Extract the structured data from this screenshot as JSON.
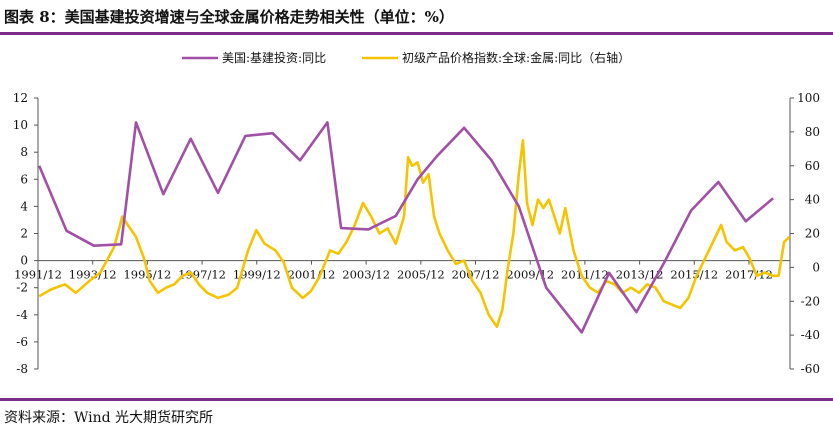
{
  "title": "图表 8：美国基建投资增速与全球金属价格走势相关性（单位：%）",
  "source": "资料来源：Wind 光大期货研究所",
  "colors": {
    "rule": "#7B2C88",
    "series1": "#A24FA7",
    "series2": "#F5C400",
    "text": "#111111"
  },
  "chart_data": {
    "type": "line",
    "legend_position": "top",
    "grid": false,
    "x": {
      "ticks": [
        "1991/12",
        "1993/12",
        "1995/12",
        "1997/12",
        "1999/12",
        "2001/12",
        "2003/12",
        "2005/12",
        "2007/12",
        "2009/12",
        "2011/12",
        "2013/12",
        "2015/12",
        "2017/12"
      ],
      "range": [
        "1991/12",
        "2019/06"
      ]
    },
    "y_left": {
      "range": [
        -8,
        12
      ],
      "ticks": [
        "-8",
        "-6",
        "-4",
        "-2",
        "0",
        "2",
        "4",
        "6",
        "8",
        "10",
        "12"
      ]
    },
    "y_right": {
      "range": [
        -60,
        100
      ],
      "ticks": [
        "-60",
        "-40",
        "-20",
        "0",
        "20",
        "40",
        "60",
        "80",
        "100"
      ]
    },
    "series": [
      {
        "name": "美国:基建投资:同比",
        "axis": "left",
        "points": [
          [
            1991.96,
            7.0
          ],
          [
            1992.96,
            2.2
          ],
          [
            1993.96,
            1.1
          ],
          [
            1994.96,
            1.2
          ],
          [
            1995.5,
            10.2
          ],
          [
            1996.5,
            4.9
          ],
          [
            1997.5,
            9.0
          ],
          [
            1998.5,
            5.0
          ],
          [
            1999.5,
            9.2
          ],
          [
            2000.5,
            9.4
          ],
          [
            2001.5,
            7.4
          ],
          [
            2002.5,
            10.2
          ],
          [
            2003.0,
            2.4
          ],
          [
            2004.0,
            2.3
          ],
          [
            2005.0,
            3.3
          ],
          [
            2005.8,
            6.0
          ],
          [
            2006.5,
            7.7
          ],
          [
            2007.5,
            9.8
          ],
          [
            2008.5,
            7.4
          ],
          [
            2009.5,
            4.0
          ],
          [
            2010.5,
            -2.0
          ],
          [
            2011.8,
            -5.3
          ],
          [
            2012.8,
            -0.9
          ],
          [
            2013.8,
            -3.8
          ],
          [
            2014.8,
            -0.2
          ],
          [
            2015.8,
            3.7
          ],
          [
            2016.8,
            5.8
          ],
          [
            2017.8,
            2.9
          ],
          [
            2018.8,
            4.6
          ]
        ]
      },
      {
        "name": "初级产品价格指数:全球:金属:同比（右轴）",
        "axis": "right",
        "points": [
          [
            1991.96,
            -17
          ],
          [
            1992.4,
            -13
          ],
          [
            1992.9,
            -10
          ],
          [
            1993.3,
            -15
          ],
          [
            1993.8,
            -8
          ],
          [
            1994.2,
            -3
          ],
          [
            1994.7,
            12
          ],
          [
            1995.0,
            30
          ],
          [
            1995.2,
            25
          ],
          [
            1995.5,
            18
          ],
          [
            1995.8,
            5
          ],
          [
            1996.0,
            -8
          ],
          [
            1996.3,
            -15
          ],
          [
            1996.6,
            -12
          ],
          [
            1996.9,
            -10
          ],
          [
            1997.2,
            -5
          ],
          [
            1997.5,
            -3
          ],
          [
            1997.8,
            -10
          ],
          [
            1998.1,
            -15
          ],
          [
            1998.5,
            -18
          ],
          [
            1998.9,
            -16
          ],
          [
            1999.2,
            -12
          ],
          [
            1999.6,
            10
          ],
          [
            1999.9,
            22
          ],
          [
            2000.2,
            14
          ],
          [
            2000.6,
            10
          ],
          [
            2000.9,
            3
          ],
          [
            2001.2,
            -12
          ],
          [
            2001.6,
            -18
          ],
          [
            2001.9,
            -14
          ],
          [
            2002.2,
            -6
          ],
          [
            2002.6,
            10
          ],
          [
            2002.9,
            8
          ],
          [
            2003.2,
            15
          ],
          [
            2003.5,
            25
          ],
          [
            2003.8,
            38
          ],
          [
            2004.1,
            30
          ],
          [
            2004.4,
            20
          ],
          [
            2004.7,
            23
          ],
          [
            2005.0,
            14
          ],
          [
            2005.3,
            30
          ],
          [
            2005.45,
            65
          ],
          [
            2005.6,
            60
          ],
          [
            2005.8,
            62
          ],
          [
            2006.0,
            50
          ],
          [
            2006.2,
            55
          ],
          [
            2006.4,
            30
          ],
          [
            2006.6,
            20
          ],
          [
            2006.9,
            10
          ],
          [
            2007.2,
            2
          ],
          [
            2007.5,
            4
          ],
          [
            2007.8,
            -8
          ],
          [
            2008.1,
            -15
          ],
          [
            2008.4,
            -28
          ],
          [
            2008.7,
            -35
          ],
          [
            2008.9,
            -25
          ],
          [
            2009.1,
            0
          ],
          [
            2009.3,
            20
          ],
          [
            2009.5,
            55
          ],
          [
            2009.65,
            75
          ],
          [
            2009.8,
            38
          ],
          [
            2010.0,
            25
          ],
          [
            2010.2,
            40
          ],
          [
            2010.4,
            35
          ],
          [
            2010.6,
            40
          ],
          [
            2010.8,
            30
          ],
          [
            2011.0,
            20
          ],
          [
            2011.2,
            35
          ],
          [
            2011.5,
            10
          ],
          [
            2011.8,
            -5
          ],
          [
            2012.1,
            -12
          ],
          [
            2012.4,
            -15
          ],
          [
            2012.7,
            -8
          ],
          [
            2013.0,
            -10
          ],
          [
            2013.3,
            -15
          ],
          [
            2013.6,
            -12
          ],
          [
            2013.9,
            -15
          ],
          [
            2014.2,
            -10
          ],
          [
            2014.5,
            -12
          ],
          [
            2014.8,
            -20
          ],
          [
            2015.1,
            -22
          ],
          [
            2015.4,
            -24
          ],
          [
            2015.7,
            -18
          ],
          [
            2016.0,
            -5
          ],
          [
            2016.3,
            5
          ],
          [
            2016.6,
            15
          ],
          [
            2016.9,
            25
          ],
          [
            2017.1,
            15
          ],
          [
            2017.4,
            10
          ],
          [
            2017.7,
            12
          ],
          [
            2017.95,
            5
          ],
          [
            2018.2,
            -5
          ],
          [
            2018.5,
            -3
          ],
          [
            2018.8,
            -5
          ],
          [
            2019.0,
            -5
          ],
          [
            2019.2,
            15
          ],
          [
            2019.4,
            18
          ]
        ]
      }
    ]
  }
}
